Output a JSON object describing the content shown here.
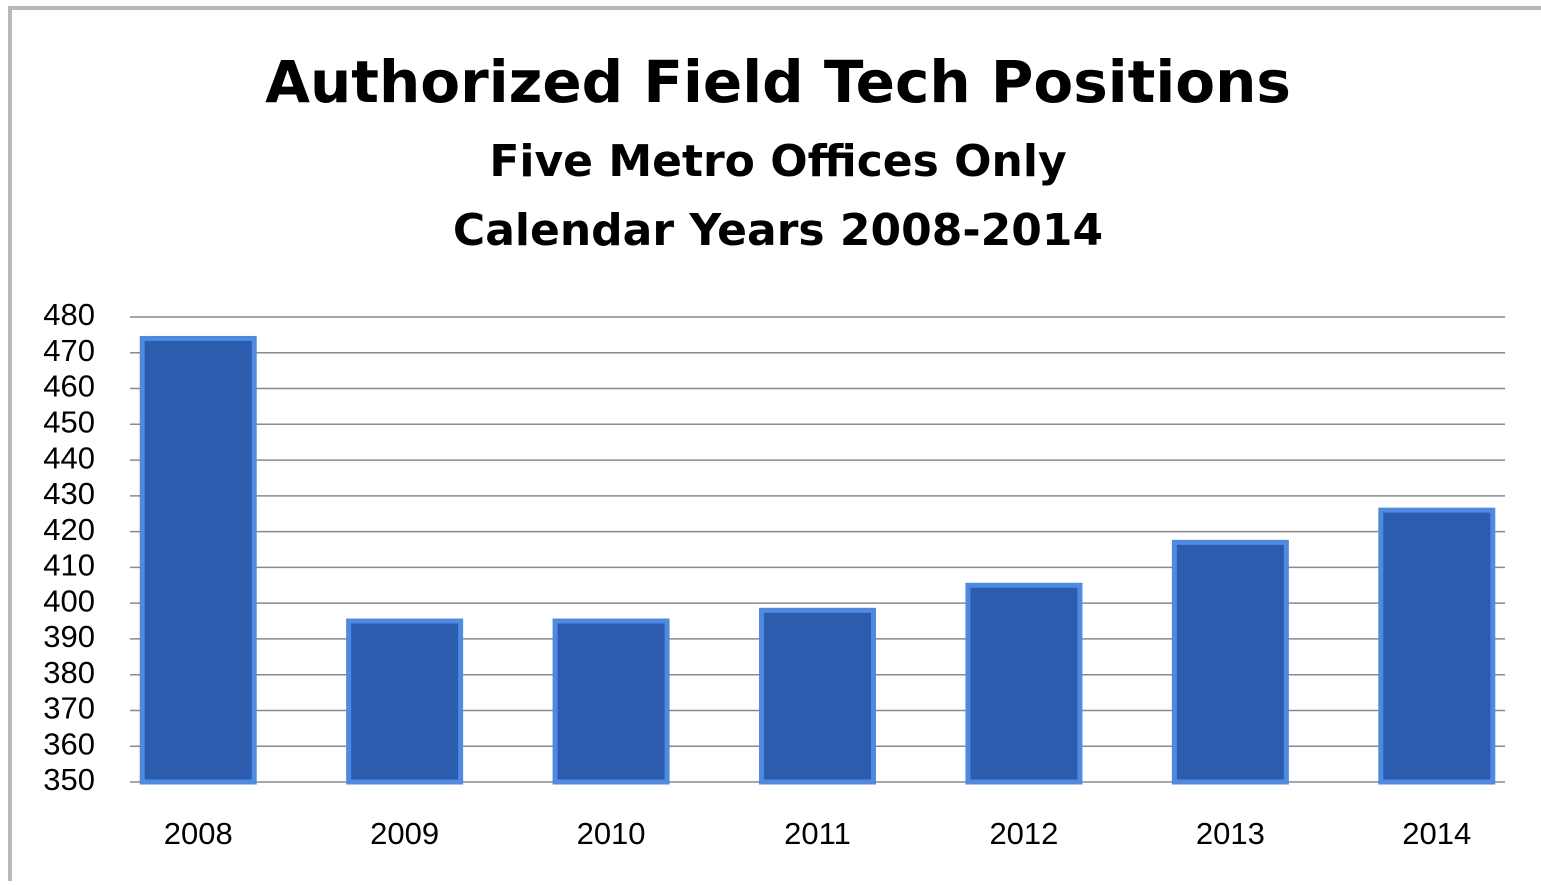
{
  "chart_data": {
    "type": "bar",
    "title": "Authorized Field Tech Positions",
    "subtitle": [
      "Five Metro Offices Only",
      "Calendar Years 2008-2014"
    ],
    "categories": [
      "2008",
      "2009",
      "2010",
      "2011",
      "2012",
      "2013",
      "2014"
    ],
    "values": [
      474,
      395,
      395,
      398,
      405,
      417,
      426
    ],
    "color": "#2b5cad",
    "ylim": [
      350,
      480
    ],
    "yticks": [
      350,
      360,
      370,
      380,
      390,
      400,
      410,
      420,
      430,
      440,
      450,
      460,
      470,
      480
    ],
    "grid": true
  }
}
